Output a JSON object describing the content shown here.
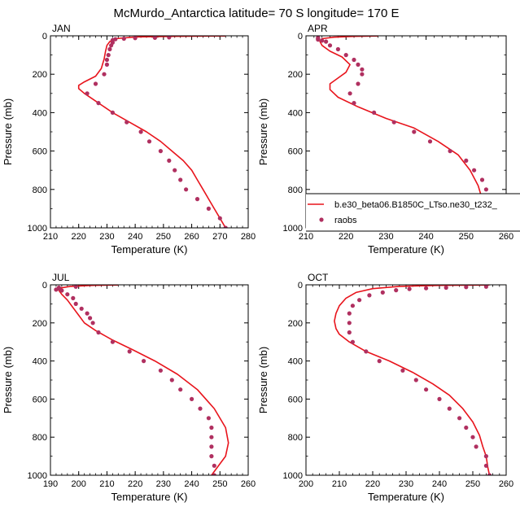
{
  "figure": {
    "title": "McMurdo_Antarctica  latitude= 70 S longitude= 170 E",
    "model_color": "#e8141c",
    "obs_color": "#b03060",
    "legend": {
      "model_label": "b.e30_beta06.B1850C_LTso.ne30_t232_",
      "obs_label": "raobs",
      "location": "APR panel, lower right"
    }
  },
  "chart_data": [
    {
      "type": "line",
      "panel": "JAN",
      "xlabel": "Temperature (K)",
      "ylabel": "Pressure (mb)",
      "xlim": [
        210,
        280
      ],
      "ylim": [
        1000,
        0
      ],
      "xticks": [
        210,
        220,
        230,
        240,
        250,
        260,
        270,
        280
      ],
      "yticks": [
        0,
        200,
        400,
        600,
        800,
        1000
      ],
      "series": [
        {
          "name": "model",
          "style": "line",
          "points": [
            [
              272,
              1
            ],
            [
              253,
              3
            ],
            [
              240,
              6
            ],
            [
              233,
              15
            ],
            [
              231,
              30
            ],
            [
              230,
              50
            ],
            [
              229.5,
              80
            ],
            [
              229,
              120
            ],
            [
              228,
              170
            ],
            [
              226,
              210
            ],
            [
              222,
              240
            ],
            [
              220,
              258
            ],
            [
              220,
              275
            ],
            [
              222,
              300
            ],
            [
              226,
              340
            ],
            [
              232,
              400
            ],
            [
              238,
              450
            ],
            [
              244,
              500
            ],
            [
              249,
              550
            ],
            [
              253,
              600
            ],
            [
              257,
              650
            ],
            [
              260,
              700
            ],
            [
              262,
              750
            ],
            [
              264,
              800
            ],
            [
              266,
              850
            ],
            [
              268,
              900
            ],
            [
              270,
              950
            ],
            [
              272,
              1000
            ]
          ]
        },
        {
          "name": "raobs",
          "style": "markers",
          "points": [
            [
              252,
              8
            ],
            [
              247,
              10
            ],
            [
              240,
              12
            ],
            [
              236,
              15
            ],
            [
              233,
              18
            ],
            [
              232,
              23
            ],
            [
              232,
              35
            ],
            [
              231.5,
              50
            ],
            [
              231,
              70
            ],
            [
              230.5,
              100
            ],
            [
              230,
              125
            ],
            [
              230,
              150
            ],
            [
              229,
              200
            ],
            [
              226,
              250
            ],
            [
              223,
              300
            ],
            [
              227,
              350
            ],
            [
              232,
              400
            ],
            [
              237,
              450
            ],
            [
              242,
              500
            ],
            [
              245,
              550
            ],
            [
              249,
              600
            ],
            [
              252,
              650
            ],
            [
              254,
              700
            ],
            [
              256,
              750
            ],
            [
              258,
              800
            ],
            [
              262,
              850
            ],
            [
              266,
              900
            ],
            [
              270,
              950
            ],
            [
              272,
              1000
            ]
          ]
        }
      ]
    },
    {
      "type": "line",
      "panel": "APR",
      "xlabel": "Temperature (K)",
      "ylabel": "Pressure (mb)",
      "xlim": [
        210,
        260
      ],
      "ylim": [
        1000,
        0
      ],
      "xticks": [
        210,
        220,
        230,
        240,
        250,
        260
      ],
      "yticks": [
        0,
        200,
        400,
        600,
        800,
        1000
      ],
      "series": [
        {
          "name": "model",
          "style": "line",
          "points": [
            [
              228,
              1
            ],
            [
              222,
              3
            ],
            [
              217,
              7
            ],
            [
              214,
              15
            ],
            [
              213.5,
              30
            ],
            [
              214,
              50
            ],
            [
              216,
              80
            ],
            [
              219,
              110
            ],
            [
              221,
              150
            ],
            [
              220,
              190
            ],
            [
              218,
              220
            ],
            [
              216,
              250
            ],
            [
              216,
              280
            ],
            [
              218,
              320
            ],
            [
              223,
              370
            ],
            [
              230,
              430
            ],
            [
              237,
              480
            ],
            [
              243,
              550
            ],
            [
              248,
              620
            ],
            [
              251,
              700
            ],
            [
              253,
              780
            ],
            [
              254,
              850
            ],
            [
              253,
              920
            ],
            [
              252,
              990
            ]
          ]
        },
        {
          "name": "raobs",
          "style": "markers",
          "points": [
            [
              213,
              10
            ],
            [
              213,
              15
            ],
            [
              213,
              20
            ],
            [
              214,
              25
            ],
            [
              215,
              30
            ],
            [
              216,
              50
            ],
            [
              218,
              70
            ],
            [
              220,
              100
            ],
            [
              222,
              125
            ],
            [
              223,
              150
            ],
            [
              224,
              175
            ],
            [
              224,
              200
            ],
            [
              223,
              250
            ],
            [
              221,
              300
            ],
            [
              222,
              350
            ],
            [
              227,
              400
            ],
            [
              232,
              450
            ],
            [
              237,
              500
            ],
            [
              241,
              550
            ],
            [
              246,
              600
            ],
            [
              250,
              650
            ],
            [
              252,
              700
            ],
            [
              254,
              750
            ],
            [
              255,
              800
            ],
            [
              256,
              850
            ],
            [
              256,
              900
            ],
            [
              257,
              950
            ],
            [
              257,
              1000
            ]
          ]
        }
      ]
    },
    {
      "type": "line",
      "panel": "JUL",
      "xlabel": "Temperature (K)",
      "ylabel": "Pressure (mb)",
      "xlim": [
        190,
        260
      ],
      "ylim": [
        1000,
        0
      ],
      "xticks": [
        190,
        200,
        210,
        220,
        230,
        240,
        250,
        260
      ],
      "yticks": [
        0,
        200,
        400,
        600,
        800,
        1000
      ],
      "series": [
        {
          "name": "model",
          "style": "line",
          "points": [
            [
              214,
              1
            ],
            [
              205,
              3
            ],
            [
              197,
              8
            ],
            [
              193,
              18
            ],
            [
              193,
              30
            ],
            [
              194,
              50
            ],
            [
              196,
              80
            ],
            [
              198,
              120
            ],
            [
              200,
              160
            ],
            [
              202,
              200
            ],
            [
              206,
              240
            ],
            [
              212,
              290
            ],
            [
              219,
              340
            ],
            [
              227,
              400
            ],
            [
              235,
              470
            ],
            [
              242,
              550
            ],
            [
              248,
              650
            ],
            [
              252,
              750
            ],
            [
              253,
              830
            ],
            [
              252,
              900
            ],
            [
              249,
              960
            ],
            [
              247,
              1000
            ]
          ]
        },
        {
          "name": "raobs",
          "style": "markers",
          "points": [
            [
              199,
              10
            ],
            [
              193,
              15
            ],
            [
              193,
              20
            ],
            [
              192,
              25
            ],
            [
              194,
              30
            ],
            [
              196,
              50
            ],
            [
              198,
              70
            ],
            [
              199,
              100
            ],
            [
              201,
              125
            ],
            [
              203,
              150
            ],
            [
              204,
              175
            ],
            [
              205,
              200
            ],
            [
              207,
              250
            ],
            [
              212,
              300
            ],
            [
              218,
              350
            ],
            [
              223,
              400
            ],
            [
              229,
              450
            ],
            [
              233,
              500
            ],
            [
              236,
              550
            ],
            [
              240,
              600
            ],
            [
              243,
              650
            ],
            [
              246,
              700
            ],
            [
              247,
              750
            ],
            [
              247,
              800
            ],
            [
              247,
              850
            ],
            [
              247,
              900
            ],
            [
              248,
              950
            ],
            [
              248,
              1000
            ]
          ]
        }
      ]
    },
    {
      "type": "line",
      "panel": "OCT",
      "xlabel": "Temperature (K)",
      "ylabel": "Pressure (mb)",
      "xlim": [
        200,
        260
      ],
      "ylim": [
        1000,
        0
      ],
      "xticks": [
        200,
        210,
        220,
        230,
        240,
        250,
        260
      ],
      "yticks": [
        0,
        200,
        400,
        600,
        800,
        1000
      ],
      "series": [
        {
          "name": "model",
          "style": "line",
          "points": [
            [
              255,
              1
            ],
            [
              240,
              3
            ],
            [
              228,
              8
            ],
            [
              220,
              20
            ],
            [
              215,
              40
            ],
            [
              212,
              70
            ],
            [
              210,
              110
            ],
            [
              209,
              150
            ],
            [
              208.5,
              190
            ],
            [
              209,
              230
            ],
            [
              210,
              260
            ],
            [
              213,
              300
            ],
            [
              218,
              350
            ],
            [
              225,
              400
            ],
            [
              232,
              460
            ],
            [
              238,
              520
            ],
            [
              243,
              580
            ],
            [
              247,
              650
            ],
            [
              250,
              720
            ],
            [
              252,
              790
            ],
            [
              253,
              850
            ],
            [
              254,
              900
            ],
            [
              254.5,
              960
            ],
            [
              255,
              1000
            ]
          ]
        },
        {
          "name": "raobs",
          "style": "markers",
          "points": [
            [
              254,
              10
            ],
            [
              248,
              12
            ],
            [
              242,
              15
            ],
            [
              236,
              18
            ],
            [
              231,
              22
            ],
            [
              227,
              28
            ],
            [
              223,
              40
            ],
            [
              219,
              55
            ],
            [
              216,
              80
            ],
            [
              214,
              110
            ],
            [
              213,
              150
            ],
            [
              213,
              200
            ],
            [
              213,
              250
            ],
            [
              214,
              300
            ],
            [
              218,
              350
            ],
            [
              222,
              400
            ],
            [
              229,
              450
            ],
            [
              233,
              500
            ],
            [
              236,
              550
            ],
            [
              240,
              600
            ],
            [
              243,
              650
            ],
            [
              246,
              700
            ],
            [
              248,
              750
            ],
            [
              250,
              800
            ],
            [
              251,
              850
            ],
            [
              254,
              900
            ],
            [
              254,
              950
            ],
            [
              255,
              1000
            ]
          ]
        }
      ]
    }
  ]
}
